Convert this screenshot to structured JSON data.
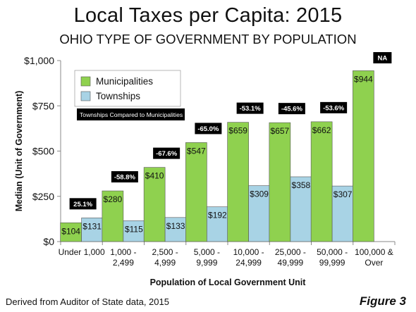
{
  "colors": {
    "municipalities": "#8fd14f",
    "townships": "#a8d3e5",
    "bar_stroke": "#555555",
    "annotation_bg": "#000000",
    "annotation_text": "#ffffff"
  },
  "footer": {
    "source": "Derived from Auditor of State data, 2015",
    "figure": "Figure 3"
  },
  "chart_data": {
    "type": "bar",
    "title": "Local Taxes per Capita: 2015",
    "subtitle": "OHIO TYPE OF GOVERNMENT BY POPULATION",
    "xlabel": "Population of Local Government Unit",
    "ylabel": "Median  (Unit of Government)",
    "ylim": [
      0,
      1000
    ],
    "yticks": [
      0,
      250,
      500,
      750,
      1000
    ],
    "ytick_labels": [
      "$0",
      "$250",
      "$500",
      "$750",
      "$1,000"
    ],
    "grid": false,
    "legend_position": "top-left",
    "legend_note": "Townships Compared to Municipalities",
    "categories": [
      [
        "Under 1,000"
      ],
      [
        "1,000 -",
        "2,499"
      ],
      [
        "2,500 -",
        "4,999"
      ],
      [
        "5,000 -",
        "9,999"
      ],
      [
        "10,000 -",
        "24,999"
      ],
      [
        "25,000 -",
        "49,999"
      ],
      [
        "50,000 -",
        "99,999"
      ],
      [
        "100,000 &",
        "Over"
      ]
    ],
    "series": [
      {
        "name": "Municipalities",
        "values": [
          104,
          280,
          410,
          547,
          659,
          657,
          662,
          944
        ],
        "labels": [
          "$104",
          "$280",
          "$410",
          "$547",
          "$659",
          "$657",
          "$662",
          "$944"
        ]
      },
      {
        "name": "Townships",
        "values": [
          131,
          115,
          133,
          192,
          309,
          358,
          307,
          null
        ],
        "labels": [
          "$131",
          "$115",
          "$133",
          "$192",
          "$309",
          "$358",
          "$307",
          ""
        ]
      }
    ],
    "annotations": [
      "25.1%",
      "-58.8%",
      "-67.6%",
      "-65.0%",
      "-53.1%",
      "-45.6%",
      "-53.6%",
      "NA"
    ]
  }
}
